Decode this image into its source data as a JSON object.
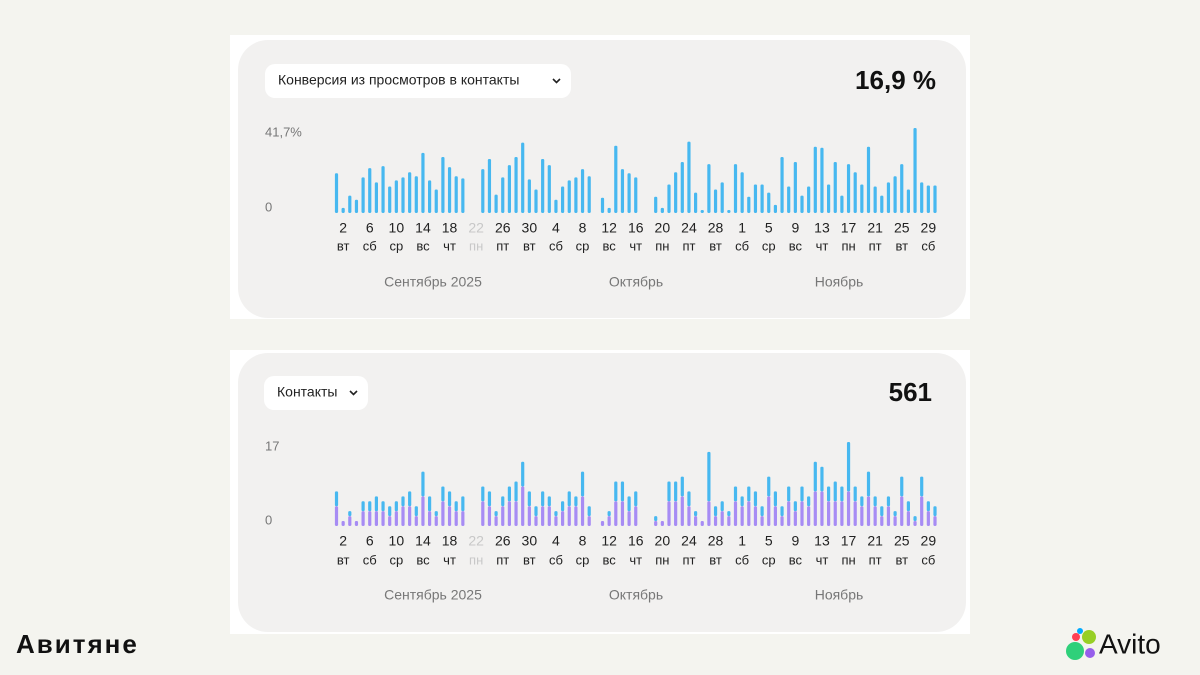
{
  "chart_data": [
    {
      "type": "bar",
      "title": "Конверсия из просмотров в контакты",
      "value": "16,9 %",
      "ylim": [
        0,
        41.7
      ],
      "yticks": [
        0,
        {
          "value": 41.7,
          "label": "41,7%"
        }
      ],
      "color": "#47b8f0",
      "months": [
        "Сентябрь 2025",
        "Октябрь",
        "Ноябрь"
      ],
      "categories": [
        null,
        "2",
        null,
        null,
        null,
        "6",
        null,
        null,
        null,
        "10",
        null,
        null,
        null,
        "14",
        null,
        null,
        null,
        "18",
        null,
        null,
        null,
        "22",
        null,
        null,
        null,
        "26",
        null,
        null,
        null,
        "30",
        null,
        null,
        null,
        "4",
        null,
        null,
        null,
        "8",
        null,
        null,
        null,
        "12",
        null,
        null,
        null,
        "16",
        null,
        null,
        null,
        "20",
        null,
        null,
        null,
        "24",
        null,
        null,
        null,
        "28",
        null,
        null,
        null,
        "1",
        null,
        null,
        null,
        "5",
        null,
        null,
        null,
        "9",
        null,
        null,
        null,
        "13",
        null,
        null,
        null,
        "17",
        null,
        null,
        null,
        "21",
        null,
        null,
        null,
        "25",
        null,
        null,
        null,
        "29",
        null
      ],
      "weekdays": [
        null,
        "вт",
        null,
        null,
        null,
        "сб",
        null,
        null,
        null,
        "ср",
        null,
        null,
        null,
        "вс",
        null,
        null,
        null,
        "чт",
        null,
        null,
        null,
        "пн",
        null,
        null,
        null,
        "пт",
        null,
        null,
        null,
        "вт",
        null,
        null,
        null,
        "сб",
        null,
        null,
        null,
        "ср",
        null,
        null,
        null,
        "вс",
        null,
        null,
        null,
        "чт",
        null,
        null,
        null,
        "пн",
        null,
        null,
        null,
        "пт",
        null,
        null,
        null,
        "вт",
        null,
        null,
        null,
        "сб",
        null,
        null,
        null,
        "ср",
        null,
        null,
        null,
        "вс",
        null,
        null,
        null,
        "чт",
        null,
        null,
        null,
        "пн",
        null,
        null,
        null,
        "пт",
        null,
        null,
        null,
        "вт",
        null,
        null,
        null,
        "сб",
        null
      ],
      "values": [
        19.5,
        2.5,
        8.5,
        6.5,
        17.5,
        22,
        15,
        23,
        13,
        16,
        17.5,
        20,
        18,
        29.5,
        16,
        11.5,
        27.5,
        22.5,
        18,
        17,
        null,
        null,
        21.5,
        26.5,
        9,
        17.5,
        23.5,
        27.5,
        34.5,
        16.5,
        11.5,
        26.5,
        23.5,
        6.5,
        13,
        16,
        17.5,
        21.5,
        18,
        null,
        7.5,
        2.5,
        33,
        21.5,
        19.5,
        17.5,
        null,
        null,
        8,
        2.5,
        14,
        20,
        25,
        35,
        10,
        1.5,
        24,
        11.5,
        15,
        1.5,
        24,
        20,
        8,
        14,
        14,
        10,
        4,
        27.5,
        13,
        25,
        8.5,
        13,
        32.5,
        32,
        14,
        25,
        8.5,
        24,
        20,
        14,
        32.5,
        13,
        8.5,
        15,
        18,
        24,
        11.5,
        41.7,
        15,
        13.5,
        13.5
      ]
    },
    {
      "type": "stacked_bar",
      "title": "Контакты",
      "value": "561",
      "ylim": [
        0,
        17
      ],
      "yticks": [
        0,
        17
      ],
      "months": [
        "Сентябрь 2025",
        "Октябрь",
        "Ноябрь"
      ],
      "categories": [
        null,
        "2",
        null,
        null,
        null,
        "6",
        null,
        null,
        null,
        "10",
        null,
        null,
        null,
        "14",
        null,
        null,
        null,
        "18",
        null,
        null,
        null,
        "22",
        null,
        null,
        null,
        "26",
        null,
        null,
        null,
        "30",
        null,
        null,
        null,
        "4",
        null,
        null,
        null,
        "8",
        null,
        null,
        null,
        "12",
        null,
        null,
        null,
        "16",
        null,
        null,
        null,
        "20",
        null,
        null,
        null,
        "24",
        null,
        null,
        null,
        "28",
        null,
        null,
        null,
        "1",
        null,
        null,
        null,
        "5",
        null,
        null,
        null,
        "9",
        null,
        null,
        null,
        "13",
        null,
        null,
        null,
        "17",
        null,
        null,
        null,
        "21",
        null,
        null,
        null,
        "25",
        null,
        null,
        null,
        "29",
        null
      ],
      "weekdays": [
        null,
        "вт",
        null,
        null,
        null,
        "сб",
        null,
        null,
        null,
        "ср",
        null,
        null,
        null,
        "вс",
        null,
        null,
        null,
        "чт",
        null,
        null,
        null,
        "пн",
        null,
        null,
        null,
        "пт",
        null,
        null,
        null,
        "вт",
        null,
        null,
        null,
        "сб",
        null,
        null,
        null,
        "ср",
        null,
        null,
        null,
        "вс",
        null,
        null,
        null,
        "чт",
        null,
        null,
        null,
        "пн",
        null,
        null,
        null,
        "пт",
        null,
        null,
        null,
        "вт",
        null,
        null,
        null,
        "сб",
        null,
        null,
        null,
        "ср",
        null,
        null,
        null,
        "вс",
        null,
        null,
        null,
        "чт",
        null,
        null,
        null,
        "пн",
        null,
        null,
        null,
        "пт",
        null,
        null,
        null,
        "вт",
        null,
        null,
        null,
        "сб",
        null
      ],
      "series": [
        {
          "color": "#a78cf4",
          "values": [
            4,
            1,
            2,
            1,
            3,
            3,
            3,
            3,
            2,
            3,
            4,
            4,
            2,
            6,
            3,
            2,
            5,
            4,
            3,
            3,
            null,
            null,
            5,
            4,
            2,
            4,
            5,
            5,
            8,
            4,
            2,
            4,
            4,
            2,
            3,
            4,
            4,
            6,
            2,
            null,
            1,
            2,
            5,
            5,
            3,
            4,
            null,
            null,
            1,
            1,
            5,
            5,
            6,
            4,
            2,
            1,
            5,
            2,
            3,
            2,
            5,
            4,
            5,
            4,
            2,
            6,
            4,
            2,
            5,
            3,
            5,
            4,
            7,
            7,
            5,
            5,
            5,
            7,
            5,
            4,
            6,
            4,
            2,
            4,
            2,
            6,
            3,
            1,
            6,
            3,
            2
          ]
        },
        {
          "color": "#47b8f0",
          "values": [
            3,
            0,
            1,
            0,
            2,
            2,
            3,
            2,
            2,
            2,
            2,
            3,
            2,
            5,
            3,
            1,
            3,
            3,
            2,
            3,
            null,
            null,
            3,
            3,
            1,
            2,
            3,
            4,
            5,
            3,
            2,
            3,
            2,
            1,
            2,
            3,
            2,
            5,
            2,
            null,
            0,
            1,
            4,
            4,
            3,
            3,
            null,
            null,
            1,
            0,
            4,
            4,
            4,
            3,
            1,
            0,
            10,
            2,
            2,
            1,
            3,
            2,
            3,
            3,
            2,
            4,
            3,
            2,
            3,
            2,
            3,
            2,
            6,
            5,
            3,
            4,
            3,
            10,
            3,
            2,
            5,
            2,
            2,
            2,
            1,
            4,
            2,
            1,
            4,
            2,
            2
          ]
        }
      ]
    }
  ],
  "footer": {
    "left": "Авитяне",
    "right": "Avito"
  }
}
